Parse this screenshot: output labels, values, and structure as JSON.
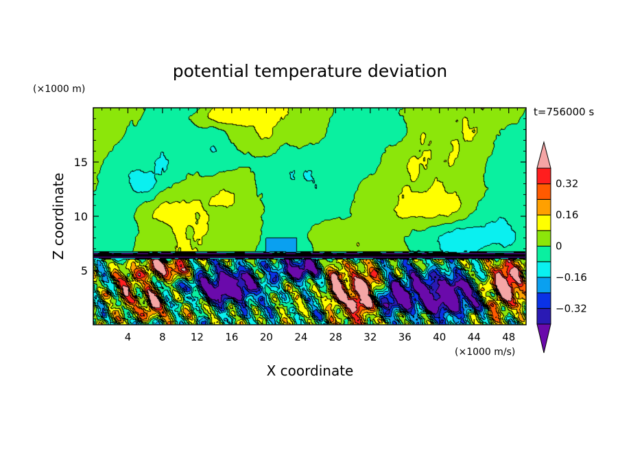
{
  "chart_data": {
    "type": "heatmap",
    "title": "potential temperature deviation",
    "xlabel": "X coordinate",
    "ylabel": "Z coordinate",
    "x_unit_label": "(×1000 m/s)",
    "y_unit_label": "(×1000 m)",
    "time_label": "t=756000 s",
    "xlim": [
      0,
      50
    ],
    "ylim": [
      0,
      20
    ],
    "x_ticks": [
      4,
      8,
      12,
      16,
      20,
      24,
      28,
      32,
      36,
      40,
      44,
      48
    ],
    "x_tick_labels": [
      "4",
      "8",
      "12",
      "16",
      "20",
      "24",
      "28",
      "32",
      "36",
      "40",
      "44",
      "48"
    ],
    "y_ticks": [
      5,
      10,
      15
    ],
    "y_tick_labels": [
      "5",
      "10",
      "15"
    ],
    "colorbar": {
      "levels": [
        -0.48,
        -0.4,
        -0.32,
        -0.24,
        -0.16,
        -0.08,
        0,
        0.08,
        0.16,
        0.24,
        0.32,
        0.4
      ],
      "tick_values": [
        -0.32,
        -0.16,
        0,
        0.16,
        0.32
      ],
      "tick_labels": [
        "−0.32",
        "−0.16",
        "0",
        "0.16",
        "0.32"
      ],
      "colors": [
        "#6a0aab",
        "#2a1ab4",
        "#0a32e6",
        "#0aa0f0",
        "#0af0f0",
        "#0af0a0",
        "#8ce60a",
        "#ffff00",
        "#ffa000",
        "#ff5a00",
        "#ff1e1e",
        "#f5a5a5"
      ],
      "extend": "both"
    },
    "field_description": "upper layer (z>6.7) weak anomalies -0.1..0.2 with alternating cyan/green/yellow bands; lower layer (z<6.7) strong anomalies -0.5..+0.5 with vortical structures"
  }
}
